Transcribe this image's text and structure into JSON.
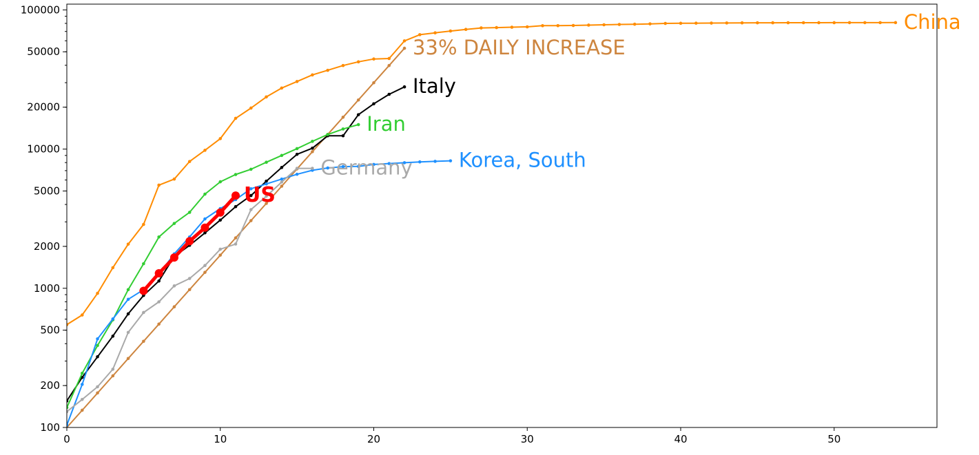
{
  "chart_data": {
    "type": "line",
    "title": "",
    "xlabel": "",
    "ylabel": "",
    "xlim": [
      0,
      56.7
    ],
    "ylim": [
      100,
      110000
    ],
    "yscale": "log",
    "grid": false,
    "legend": "none; series labelled at line ends",
    "xticks": [
      0,
      10,
      20,
      30,
      40,
      50
    ],
    "xtick_labels": [
      "0",
      "10",
      "20",
      "30",
      "40",
      "50"
    ],
    "yticks": [
      100,
      200,
      500,
      1000,
      2000,
      5000,
      10000,
      20000,
      50000,
      100000
    ],
    "ytick_labels": [
      "100",
      "200",
      "500",
      "1000",
      "2000",
      "5000",
      "10000",
      "20000",
      "50000",
      "100000"
    ],
    "series": [
      {
        "name": "China",
        "color": "#ff8c00",
        "label_weight": "normal",
        "x": [
          0,
          1,
          2,
          3,
          4,
          5,
          6,
          7,
          8,
          9,
          10,
          11,
          12,
          13,
          14,
          15,
          16,
          17,
          18,
          19,
          20,
          21,
          22,
          23,
          24,
          25,
          26,
          27,
          28,
          29,
          30,
          31,
          32,
          33,
          34,
          35,
          36,
          37,
          38,
          39,
          40,
          41,
          42,
          43,
          44,
          45,
          46,
          47,
          48,
          49,
          50,
          51,
          52,
          53,
          54
        ],
        "y": [
          548,
          643,
          920,
          1406,
          2075,
          2877,
          5509,
          6087,
          8141,
          9802,
          11891,
          16630,
          19716,
          23707,
          27440,
          30587,
          34110,
          36814,
          39829,
          42354,
          44386,
          44759,
          59895,
          66358,
          68413,
          70513,
          72434,
          74211,
          74619,
          75077,
          75550,
          77001,
          77022,
          77241,
          77754,
          78166,
          78600,
          78928,
          79356,
          79932,
          80136,
          80261,
          80386,
          80537,
          80690,
          80770,
          80823,
          80860,
          80887,
          80921,
          80932,
          80945,
          80977,
          81003,
          81033
        ]
      },
      {
        "name": "33% DAILY INCREASE",
        "color": "#cd853f",
        "label_weight": "normal",
        "x": [
          0,
          1,
          2,
          3,
          4,
          5,
          6,
          7,
          8,
          9,
          10,
          11,
          12,
          13,
          14,
          15,
          16,
          17,
          18,
          19,
          20,
          21,
          22
        ],
        "y": [
          100,
          133,
          177,
          235,
          313,
          416,
          553,
          736,
          978,
          1301,
          1730,
          2301,
          3061,
          4071,
          5414,
          7201,
          9577,
          12738,
          16941,
          22532,
          29967,
          39856,
          53008
        ]
      },
      {
        "name": "Italy",
        "color": "#000000",
        "label_weight": "normal",
        "x": [
          0,
          1,
          2,
          3,
          4,
          5,
          6,
          7,
          8,
          9,
          10,
          11,
          12,
          13,
          14,
          15,
          16,
          17,
          18,
          19,
          20,
          21,
          22
        ],
        "y": [
          155,
          229,
          322,
          453,
          655,
          888,
          1128,
          1694,
          2036,
          2502,
          3089,
          3858,
          4636,
          5883,
          7375,
          9172,
          10149,
          12462,
          12462,
          17660,
          21157,
          24747,
          27980
        ]
      },
      {
        "name": "Iran",
        "color": "#32cd32",
        "label_weight": "normal",
        "x": [
          0,
          1,
          2,
          3,
          4,
          5,
          6,
          7,
          8,
          9,
          10,
          11,
          12,
          13,
          14,
          15,
          16,
          17,
          18,
          19
        ],
        "y": [
          139,
          245,
          388,
          593,
          978,
          1501,
          2336,
          2922,
          3513,
          4747,
          5823,
          6566,
          7161,
          8042,
          9000,
          10075,
          11364,
          12729,
          13938,
          14991
        ]
      },
      {
        "name": "Korea, South",
        "color": "#1e90ff",
        "label_weight": "normal",
        "x": [
          0,
          1,
          2,
          3,
          4,
          5,
          6,
          7,
          8,
          9,
          10,
          11,
          12,
          13,
          14,
          15,
          16,
          17,
          18,
          19,
          20,
          21,
          22,
          23,
          24,
          25
        ],
        "y": [
          104,
          204,
          433,
          602,
          833,
          977,
          1261,
          1766,
          2337,
          3150,
          3736,
          4335,
          5186,
          5621,
          6088,
          6593,
          7041,
          7314,
          7478,
          7513,
          7755,
          7869,
          7979,
          8086,
          8162,
          8236
        ]
      },
      {
        "name": "Germany",
        "color": "#a9a9a9",
        "label_weight": "normal",
        "x": [
          0,
          1,
          2,
          3,
          4,
          5,
          6,
          7,
          8,
          9,
          10,
          11,
          12,
          13,
          14,
          15,
          16
        ],
        "y": [
          130,
          159,
          196,
          262,
          482,
          670,
          799,
          1040,
          1176,
          1457,
          1908,
          2078,
          3675,
          4585,
          5795,
          7272,
          7272
        ]
      },
      {
        "name": "US",
        "color": "#ff0000",
        "label_weight": "bold",
        "x": [
          5,
          6,
          7,
          8,
          9,
          10,
          11
        ],
        "y": [
          959,
          1281,
          1663,
          2179,
          2727,
          3499,
          4632
        ]
      }
    ]
  }
}
